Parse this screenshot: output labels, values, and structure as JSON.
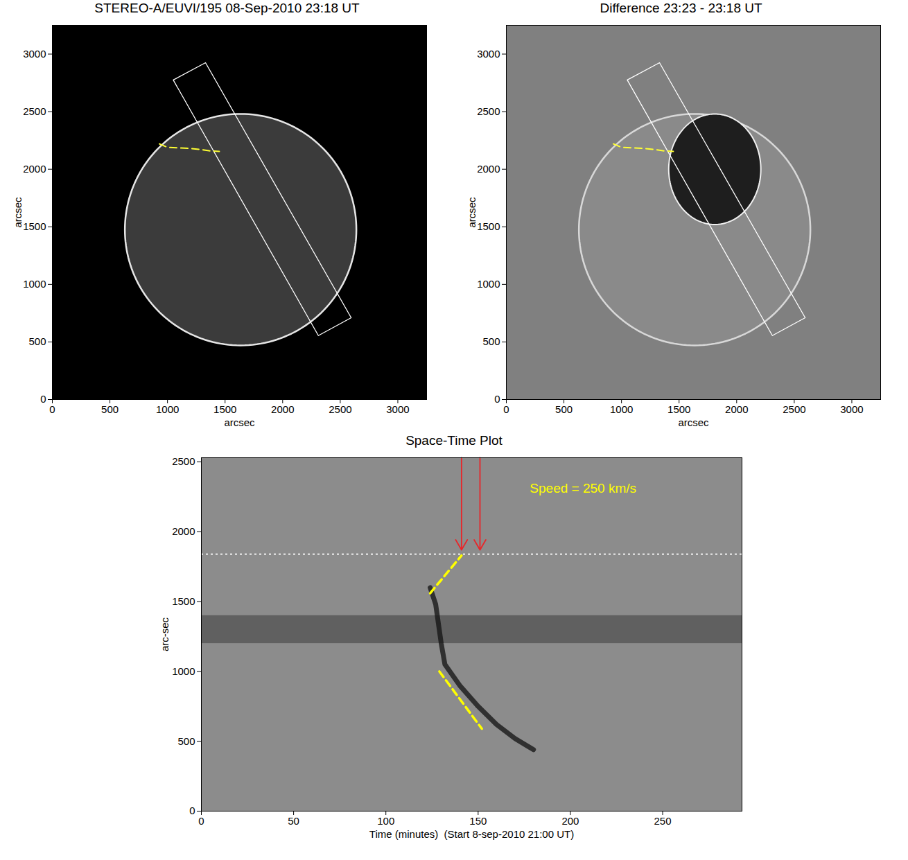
{
  "chart_data": [
    {
      "type": "image",
      "title": "STEREO-A/EUVI/195  08-Sep-2010 23:18 UT",
      "x_label": "arcsec",
      "y_label": "arcsec",
      "xlim": [
        0,
        3250
      ],
      "ylim": [
        0,
        3250
      ],
      "xticks": [
        0,
        500,
        1000,
        1500,
        2000,
        2500,
        3000
      ],
      "yticks": [
        0,
        500,
        1000,
        1500,
        2000,
        2500,
        3000
      ],
      "disk": {
        "x": 1635,
        "y": 1475,
        "r": 1005
      },
      "box": [
        [
          1050,
          2775
        ],
        [
          1330,
          2925
        ],
        [
          2595,
          710
        ],
        [
          2310,
          555
        ]
      ],
      "path": {
        "points": [
          [
            930,
            2220
          ],
          [
            1000,
            2190
          ],
          [
            1100,
            2185
          ],
          [
            1200,
            2180
          ],
          [
            1300,
            2170
          ],
          [
            1360,
            2160
          ],
          [
            1450,
            2155
          ]
        ],
        "color": "#ffff33",
        "line_style": "dashed"
      }
    },
    {
      "type": "difference_image",
      "title": "Difference  23:23 - 23:18 UT",
      "x_label": "arcsec",
      "y_label": "arcsec",
      "xlim": [
        0,
        3250
      ],
      "ylim": [
        0,
        3250
      ],
      "xticks": [
        0,
        500,
        1000,
        1500,
        2000,
        2500,
        3000
      ],
      "yticks": [
        0,
        500,
        1000,
        1500,
        2000,
        2500,
        3000
      ],
      "disk": {
        "x": 1635,
        "y": 1475,
        "r": 1005
      },
      "dimming": {
        "x": 1810,
        "y": 2000,
        "rx": 400,
        "ry": 480
      },
      "box": [
        [
          1050,
          2775
        ],
        [
          1330,
          2925
        ],
        [
          2595,
          710
        ],
        [
          2310,
          555
        ]
      ],
      "path": {
        "points": [
          [
            930,
            2220
          ],
          [
            1000,
            2190
          ],
          [
            1100,
            2185
          ],
          [
            1200,
            2180
          ],
          [
            1300,
            2170
          ],
          [
            1360,
            2160
          ],
          [
            1450,
            2155
          ]
        ],
        "color": "#ffff33",
        "line_style": "dashed"
      }
    },
    {
      "type": "space_time",
      "title": "Space-Time Plot",
      "x_label": "Time (minutes)  (Start 8-sep-2010 21:00 UT)",
      "y_label": "arc-sec",
      "xlim": [
        0,
        293
      ],
      "ylim": [
        0,
        2530
      ],
      "xticks": [
        0,
        50,
        100,
        150,
        200,
        250
      ],
      "yticks": [
        0,
        500,
        1000,
        1500,
        2000,
        2500
      ],
      "band": [
        1200,
        1400
      ],
      "front": [
        [
          124,
          1600
        ],
        [
          127,
          1480
        ],
        [
          130,
          1200
        ],
        [
          132,
          1050
        ],
        [
          140,
          900
        ],
        [
          150,
          750
        ],
        [
          160,
          620
        ],
        [
          170,
          520
        ],
        [
          180,
          440
        ]
      ],
      "fits": {
        "segments": [
          [
            [
              124,
              1560
            ],
            [
              141,
              1830
            ]
          ],
          [
            [
              129,
              1000
            ],
            [
              152,
              590
            ]
          ]
        ],
        "color": "#ffff00",
        "line_style": "dashed"
      },
      "reference": {
        "y": 1840,
        "color": "#ffffff",
        "line_style": "dotted"
      },
      "arrows": {
        "x": [
          141,
          151
        ],
        "y_from": 2530,
        "y_to": 1870,
        "color": "#e8262a"
      },
      "annotation": {
        "text": "Speed = 250 km/s",
        "x": 178,
        "y": 2310,
        "color": "#ffff00"
      }
    }
  ]
}
